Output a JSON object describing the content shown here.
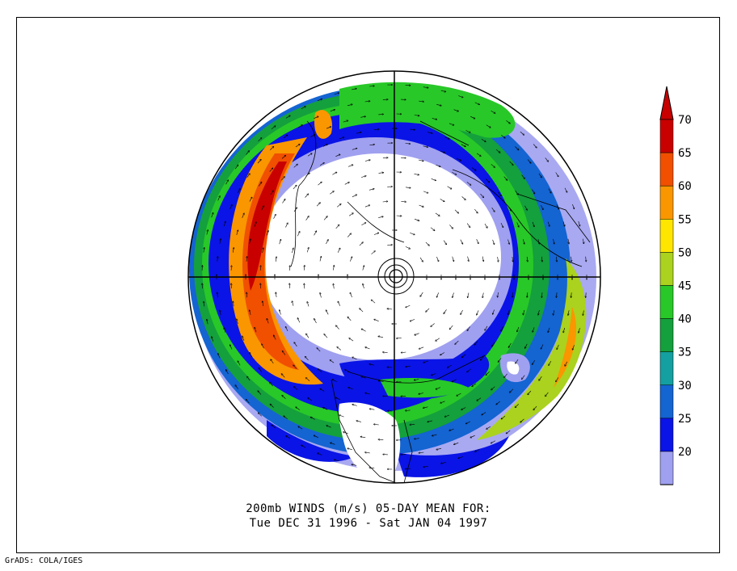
{
  "title_line1": "200mb WINDS (m/s)   05-DAY MEAN FOR:",
  "title_line2": "Tue DEC 31 1996 - Sat JAN 04 1997",
  "credit": "GrADS: COLA/IGES",
  "colorbar": {
    "levels": [
      {
        "label": "70",
        "color": "#c80000"
      },
      {
        "label": "65",
        "color": "#f05000"
      },
      {
        "label": "60",
        "color": "#fa9600"
      },
      {
        "label": "55",
        "color": "#ffe600"
      },
      {
        "label": "50",
        "color": "#aad21e"
      },
      {
        "label": "45",
        "color": "#28c828"
      },
      {
        "label": "40",
        "color": "#14a03c"
      },
      {
        "label": "35",
        "color": "#14a0a0"
      },
      {
        "label": "30",
        "color": "#1464d2"
      },
      {
        "label": "25",
        "color": "#0a14e6"
      },
      {
        "label": "20",
        "color": "#a0a0f0"
      }
    ],
    "top_color": "#c80000",
    "bottom_color": "#ffffff"
  }
}
